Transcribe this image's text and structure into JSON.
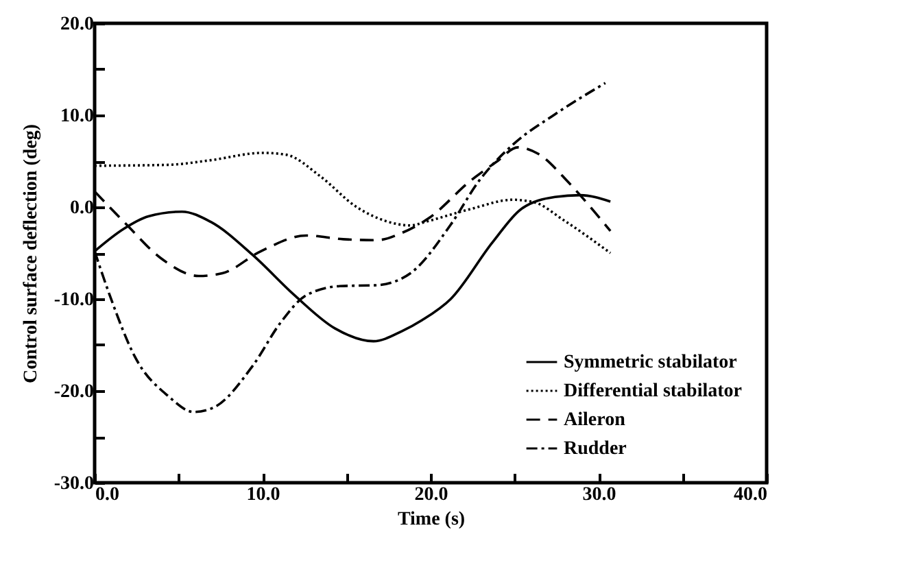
{
  "chart_data": {
    "type": "line",
    "xlabel": "Time  (s)",
    "ylabel": "Control surface deflection  (deg)",
    "xlim": [
      0,
      40
    ],
    "ylim": [
      -30,
      20
    ],
    "xticks": [
      {
        "value": 0,
        "label": "0.0"
      },
      {
        "value": 5,
        "label": null
      },
      {
        "value": 10,
        "label": "10.0"
      },
      {
        "value": 15,
        "label": null
      },
      {
        "value": 20,
        "label": "20.0"
      },
      {
        "value": 25,
        "label": null
      },
      {
        "value": 30,
        "label": "30.0"
      },
      {
        "value": 35,
        "label": null
      },
      {
        "value": 40,
        "label": "40.0"
      }
    ],
    "yticks": [
      {
        "value": -30,
        "label": "-30.0"
      },
      {
        "value": -25,
        "label": null
      },
      {
        "value": -20,
        "label": "-20.0"
      },
      {
        "value": -15,
        "label": null
      },
      {
        "value": -10,
        "label": "-10.0"
      },
      {
        "value": -5,
        "label": null
      },
      {
        "value": 0,
        "label": "0.0"
      },
      {
        "value": 5,
        "label": null
      },
      {
        "value": 10,
        "label": "10.0"
      },
      {
        "value": 15,
        "label": null
      },
      {
        "value": 20,
        "label": "20.0"
      }
    ],
    "grid": false,
    "legend": "bottom right",
    "marker": "none",
    "series": [
      {
        "name": "Symmetric stabilator",
        "color": "#000000",
        "line_style": "solid",
        "x": [
          0,
          1.7,
          3.2,
          5.2,
          6.9,
          9.4,
          11.9,
          14.3,
          16.6,
          18.3,
          19.5,
          21.2,
          23.7,
          25.4,
          27.4,
          28.9,
          30.7
        ],
        "values": [
          -4.8,
          -2.4,
          -1.0,
          -0.5,
          -1.6,
          -5.2,
          -9.6,
          -13.2,
          -14.6,
          -13.5,
          -12.3,
          -10,
          -3.8,
          -0.2,
          1.1,
          1.3,
          0.6
        ]
      },
      {
        "name": "Differential stabilator",
        "color": "#000000",
        "line_style": "dotted",
        "x": [
          0,
          4.4,
          6.9,
          10,
          11.4,
          13.4,
          15.6,
          17.3,
          18.8,
          19.7,
          22.4,
          24.9,
          26.2,
          27.9,
          30.7
        ],
        "values": [
          4.5,
          4.6,
          5.1,
          5.9,
          5.7,
          3.4,
          0,
          -1.5,
          -2.0,
          -1.6,
          -0.2,
          0.8,
          0.5,
          -1.4,
          -5
        ]
      },
      {
        "name": "Aileron",
        "color": "#000000",
        "line_style": "dashed",
        "x": [
          0,
          1.9,
          3.9,
          6.2,
          7.6,
          9.9,
          12.6,
          14.8,
          16.8,
          18.3,
          19.9,
          22.4,
          23.9,
          25.2,
          26.4,
          28.2,
          29.7,
          30.7
        ],
        "values": [
          1.7,
          -1.9,
          -5.5,
          -7.5,
          -7.2,
          -4.8,
          -3.1,
          -3.5,
          -3.6,
          -2.8,
          -1.2,
          2.9,
          4.9,
          6.5,
          5.8,
          2.7,
          -0.4,
          -2.6
        ]
      },
      {
        "name": "Rudder",
        "color": "#000000",
        "line_style": "dashdot",
        "x": [
          0,
          0.9,
          2.4,
          4.4,
          5.9,
          7.1,
          9.4,
          11.1,
          12.6,
          14.6,
          16.8,
          18.8,
          21.2,
          22.9,
          24.9,
          27.4,
          30.4
        ],
        "values": [
          -4.8,
          -9.6,
          -16.3,
          -20.6,
          -22.3,
          -21.8,
          -17.3,
          -12.5,
          -9.6,
          -8.6,
          -8.5,
          -7.2,
          -1.9,
          2.9,
          6.8,
          10.1,
          13.5
        ]
      }
    ]
  }
}
